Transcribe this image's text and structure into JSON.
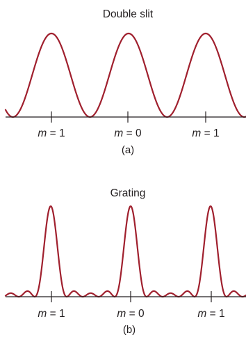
{
  "colors": {
    "curve": "#a0202e",
    "ink": "#231f20"
  },
  "panels": [
    {
      "id": "a",
      "title": "Double slit",
      "caption": "(a)",
      "pattern": "double-slit",
      "labels": [
        {
          "var": "m",
          "text": " = 1"
        },
        {
          "var": "m",
          "text": " = 0"
        },
        {
          "var": "m",
          "text": " = 1"
        }
      ]
    },
    {
      "id": "b",
      "title": "Grating",
      "caption": "(b)",
      "pattern": "grating",
      "labels": [
        {
          "var": "m",
          "text": " = 1"
        },
        {
          "var": "m",
          "text": " = 0"
        },
        {
          "var": "m",
          "text": " = 1"
        }
      ]
    }
  ]
}
